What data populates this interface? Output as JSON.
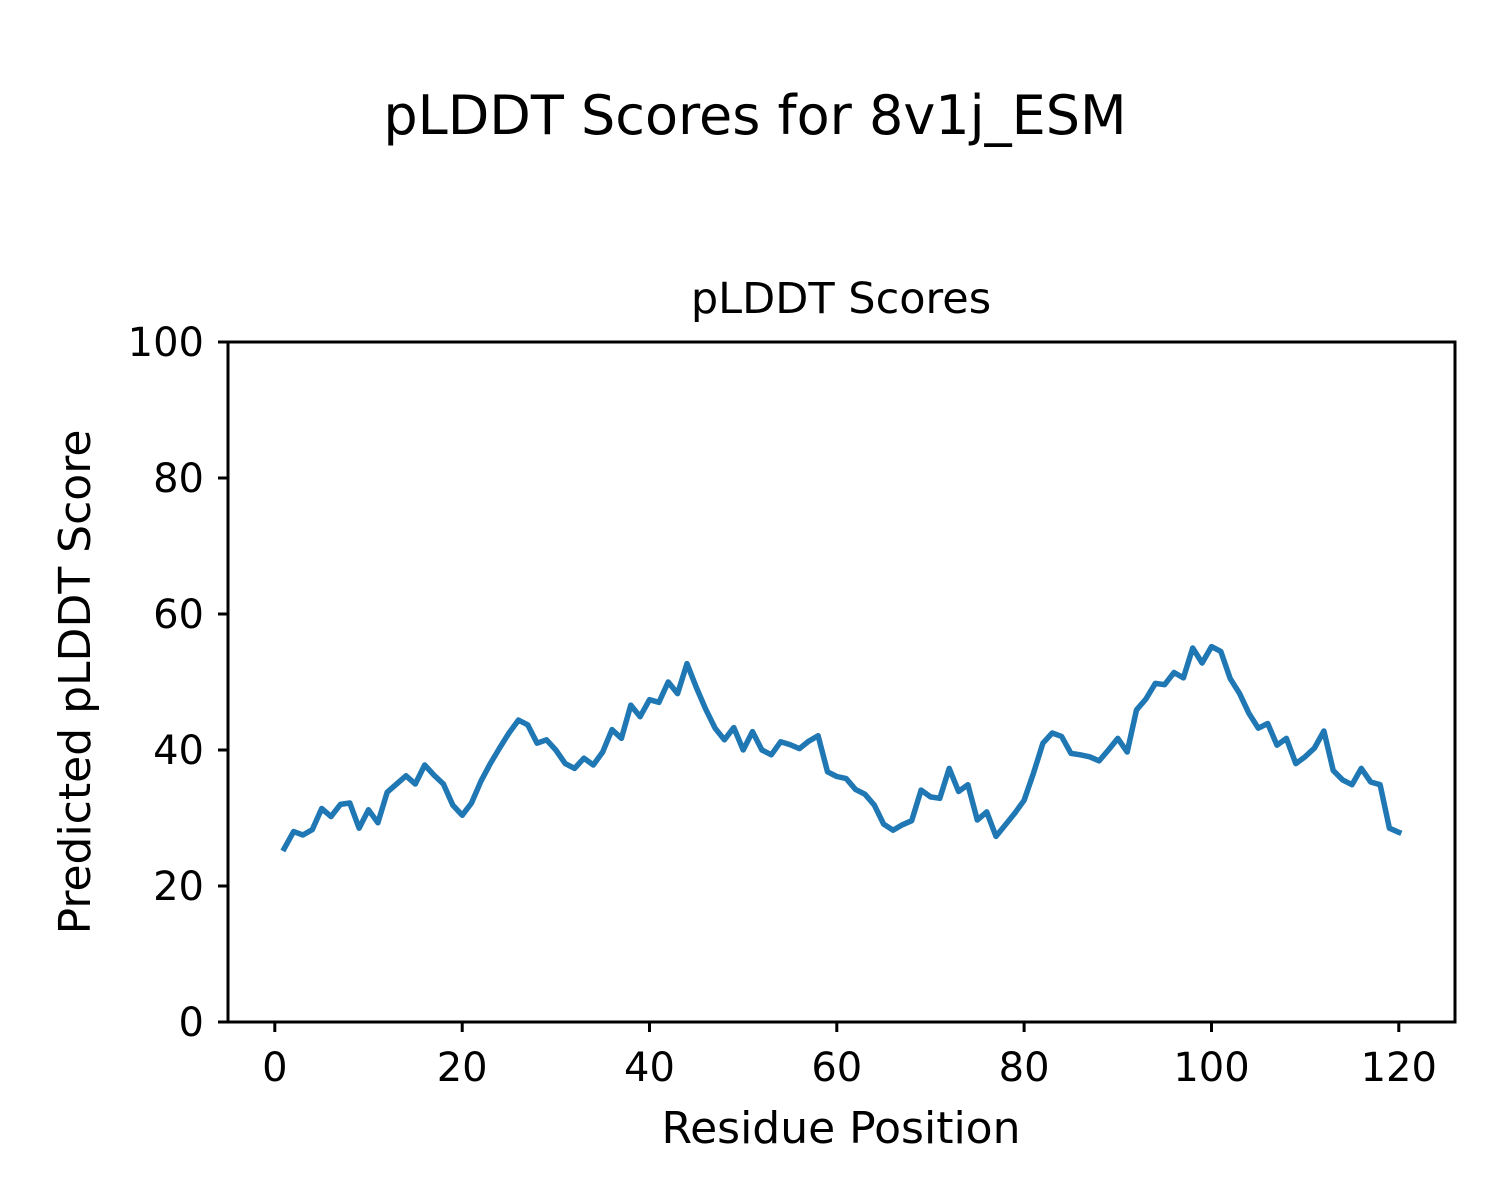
{
  "figure": {
    "suptitle": "pLDDT Scores for 8v1j_ESM"
  },
  "chart_data": {
    "type": "line",
    "title": "pLDDT Scores",
    "suptitle": "pLDDT Scores for 8v1j_ESM",
    "xlabel": "Residue Position",
    "ylabel": "Predicted pLDDT Score",
    "xlim": [
      -5,
      126
    ],
    "ylim": [
      0,
      100
    ],
    "x_ticks": [
      0,
      20,
      40,
      60,
      80,
      100,
      120
    ],
    "y_ticks": [
      0,
      20,
      40,
      60,
      80,
      100
    ],
    "grid": false,
    "legend": null,
    "line_color": "#1f77b4",
    "series": [
      {
        "name": "pLDDT",
        "x_start": 1,
        "x_step": 1,
        "values": [
          25.5,
          28.0,
          27.5,
          28.3,
          31.4,
          30.2,
          32.0,
          32.2,
          28.5,
          31.2,
          29.3,
          33.8,
          35.0,
          36.2,
          35.0,
          37.8,
          36.3,
          35.0,
          31.9,
          30.4,
          32.2,
          35.4,
          38.0,
          40.3,
          42.5,
          44.4,
          43.7,
          41.0,
          41.5,
          40.0,
          38.0,
          37.3,
          38.8,
          37.8,
          39.7,
          43.0,
          41.7,
          46.6,
          44.9,
          47.4,
          47.0,
          50.0,
          48.3,
          52.7,
          49.2,
          46.0,
          43.2,
          41.5,
          43.3,
          40.0,
          42.7,
          40.0,
          39.3,
          41.2,
          40.8,
          40.2,
          41.3,
          42.1,
          36.8,
          36.1,
          35.8,
          34.2,
          33.5,
          31.9,
          29.1,
          28.2,
          29.0,
          29.6,
          34.1,
          33.1,
          32.9,
          37.3,
          33.9,
          34.9,
          29.7,
          30.9,
          27.3,
          29.0,
          30.7,
          32.6,
          36.6,
          41.0,
          42.5,
          42.0,
          39.5,
          39.3,
          39.0,
          38.4,
          40.0,
          41.7,
          39.7,
          45.9,
          47.5,
          49.8,
          49.6,
          51.4,
          50.6,
          55.0,
          52.8,
          55.2,
          54.5,
          50.5,
          48.3,
          45.4,
          43.2,
          43.9,
          40.7,
          41.7,
          38.0,
          39.0,
          40.3,
          42.8,
          37.0,
          35.6,
          34.9,
          37.3,
          35.3,
          34.9,
          28.5,
          27.9
        ]
      }
    ]
  }
}
